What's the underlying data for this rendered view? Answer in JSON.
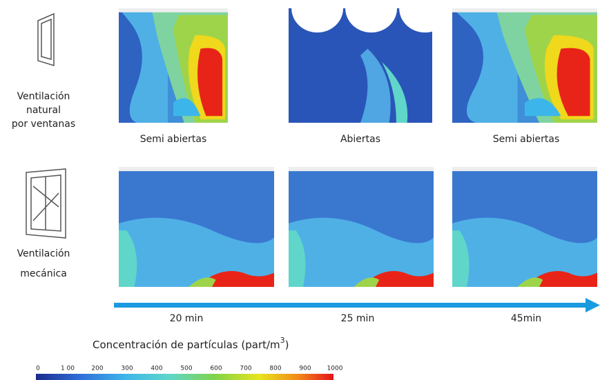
{
  "rows": [
    {
      "label_lines": [
        "Ventilación",
        "natural",
        "por ventanas"
      ],
      "captions": [
        "Semi abiertas",
        "Abiertas",
        "Semi abiertas"
      ]
    },
    {
      "label_lines": [
        "Ventilación",
        "mecánica"
      ]
    }
  ],
  "timeline": [
    "20 min",
    "25 min",
    "45min"
  ],
  "legend": {
    "title_parts": [
      "Concentración de partículas (part/m",
      "3",
      ")"
    ],
    "ticks": [
      "0",
      "1 00",
      "200",
      "300",
      "400",
      "500",
      "600",
      "700",
      "800",
      "900",
      "1000"
    ]
  }
}
